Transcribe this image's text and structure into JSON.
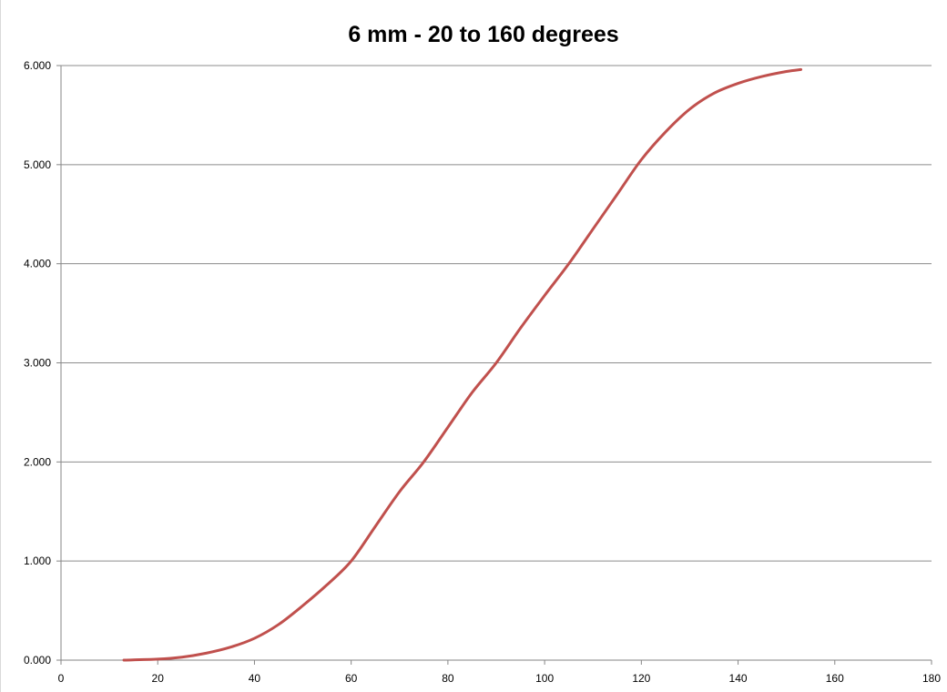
{
  "chart_data": {
    "type": "line",
    "title": "6 mm - 20 to 160 degrees",
    "xlabel": "",
    "ylabel": "",
    "xlim": [
      0,
      180
    ],
    "ylim": [
      0,
      6
    ],
    "x_ticks": [
      0,
      20,
      40,
      60,
      80,
      100,
      120,
      140,
      160,
      180
    ],
    "y_ticks": [
      0,
      1,
      2,
      3,
      4,
      5,
      6
    ],
    "x_tick_labels": [
      "0",
      "20",
      "40",
      "60",
      "80",
      "100",
      "120",
      "140",
      "160",
      "180"
    ],
    "y_tick_labels": [
      "0.000",
      "1.000",
      "2.000",
      "3.000",
      "4.000",
      "5.000",
      "6.000"
    ],
    "grid": "horizontal",
    "legend": "none",
    "series": [
      {
        "color": "#c0504d",
        "x": [
          13,
          20,
          25,
          30,
          35,
          40,
          45,
          50,
          55,
          60,
          65,
          70,
          75,
          80,
          85,
          90,
          95,
          100,
          105,
          110,
          115,
          120,
          125,
          130,
          135,
          140,
          145,
          150,
          153
        ],
        "y": [
          0.0,
          0.01,
          0.03,
          0.07,
          0.13,
          0.22,
          0.36,
          0.55,
          0.76,
          1.0,
          1.35,
          1.7,
          2.0,
          2.35,
          2.7,
          3.0,
          3.35,
          3.68,
          4.0,
          4.35,
          4.7,
          5.05,
          5.33,
          5.56,
          5.72,
          5.82,
          5.89,
          5.94,
          5.96
        ]
      }
    ]
  }
}
